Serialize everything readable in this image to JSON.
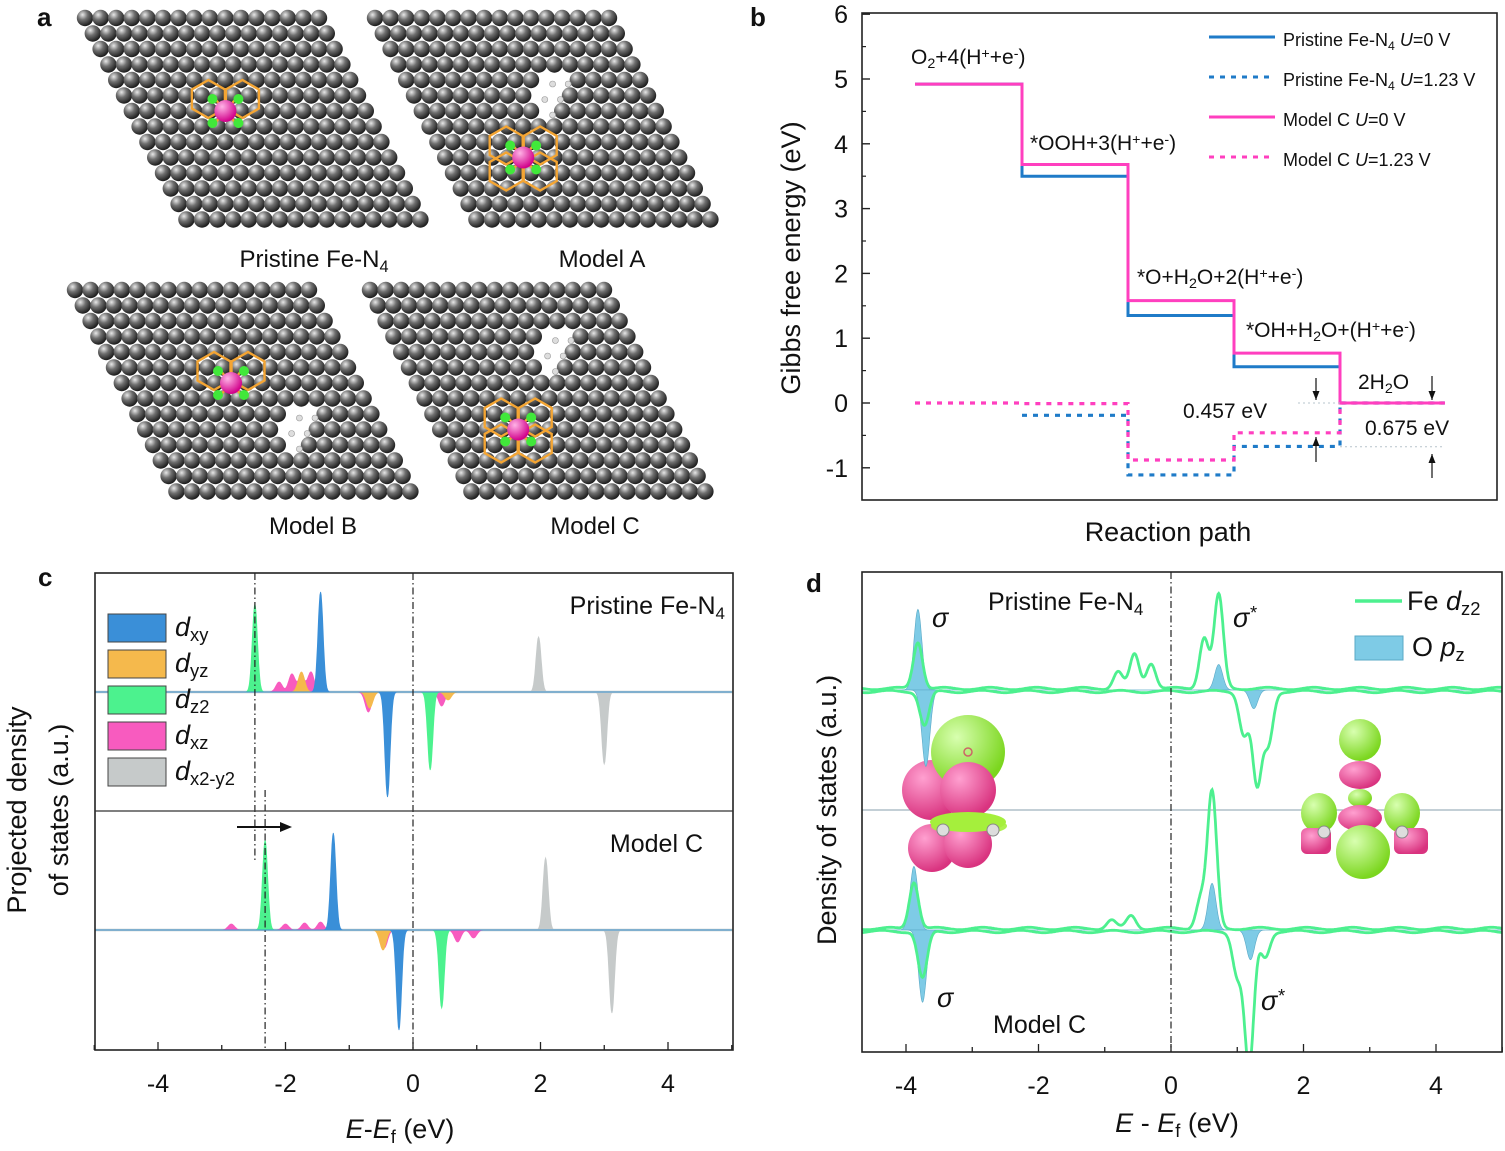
{
  "panel_labels": {
    "a": "a",
    "b": "b",
    "c": "c",
    "d": "d"
  },
  "panel_a": {
    "models": [
      {
        "label": [
          [
            "Pristine Fe-N",
            ""
          ],
          [
            "4",
            "sub"
          ]
        ]
      },
      {
        "label": [
          [
            "Model A",
            ""
          ]
        ]
      },
      {
        "label": [
          [
            "Model B",
            ""
          ]
        ]
      },
      {
        "label": [
          [
            "Model C",
            ""
          ]
        ]
      }
    ]
  },
  "chart_data": [
    {
      "panel": "b",
      "type": "line",
      "xlabel": "Reaction path",
      "ylabel": "Gibbs free energy (eV)",
      "ylim": [
        -1.5,
        6
      ],
      "yticks": [
        "-1",
        "0",
        "1",
        "2",
        "3",
        "4",
        "5",
        "6"
      ],
      "legend_position": "top-right",
      "categories": [
        [
          [
            "O",
            ""
          ],
          [
            "2",
            "sub"
          ],
          [
            "+4(H",
            ""
          ],
          [
            "+",
            "sup"
          ],
          [
            "+e",
            ""
          ],
          [
            "-",
            "sup"
          ],
          [
            ")",
            ""
          ]
        ],
        [
          [
            "*OOH+3(H",
            ""
          ],
          [
            "+",
            "sup"
          ],
          [
            "+e",
            ""
          ],
          [
            "-",
            "sup"
          ],
          [
            ")",
            ""
          ]
        ],
        [
          [
            "*O+H",
            ""
          ],
          [
            "2",
            "sub"
          ],
          [
            "O+2(H",
            ""
          ],
          [
            "+",
            "sup"
          ],
          [
            "+e",
            ""
          ],
          [
            "-",
            "sup"
          ],
          [
            ")",
            ""
          ]
        ],
        [
          [
            "*OH+H",
            ""
          ],
          [
            "2",
            "sub"
          ],
          [
            "O+(H",
            ""
          ],
          [
            "+",
            "sup"
          ],
          [
            "+e",
            ""
          ],
          [
            "-",
            "sup"
          ],
          [
            ")",
            ""
          ]
        ],
        [
          [
            "2H",
            ""
          ],
          [
            "2",
            "sub"
          ],
          [
            "O",
            ""
          ]
        ]
      ],
      "series": [
        {
          "name": [
            [
              "Pristine Fe-N",
              ""
            ],
            [
              "4",
              "sub"
            ],
            [
              " ",
              ""
            ],
            [
              "U",
              "i"
            ],
            [
              "=0 V",
              ""
            ]
          ],
          "style": "solid",
          "color": "#1f7bc8",
          "values": [
            4.92,
            3.5,
            1.35,
            0.56,
            0
          ]
        },
        {
          "name": [
            [
              "Pristine Fe-N",
              ""
            ],
            [
              "4",
              "sub"
            ],
            [
              " ",
              ""
            ],
            [
              "U",
              "i"
            ],
            [
              "=1.23 V",
              ""
            ]
          ],
          "style": "dotted",
          "color": "#1f7bc8",
          "values": [
            0,
            -0.19,
            -1.11,
            -0.67,
            0
          ]
        },
        {
          "name": [
            [
              "Model C ",
              ""
            ],
            [
              "U",
              "i"
            ],
            [
              "=0 V",
              ""
            ]
          ],
          "style": "solid",
          "color": "#ff3fbf",
          "values": [
            4.92,
            3.68,
            1.58,
            0.77,
            0
          ]
        },
        {
          "name": [
            [
              "Model C ",
              ""
            ],
            [
              "U",
              "i"
            ],
            [
              "=1.23 V",
              ""
            ]
          ],
          "style": "dotted",
          "color": "#ff3fbf",
          "values": [
            0,
            -0.01,
            -0.88,
            -0.46,
            0
          ]
        }
      ],
      "annotations": [
        {
          "text": "0.457 eV",
          "value": 0.457
        },
        {
          "text": "0.675 eV",
          "value": 0.675
        }
      ]
    },
    {
      "panel": "c",
      "type": "area",
      "xlabel": [
        [
          "E",
          "i"
        ],
        [
          "-",
          ""
        ],
        [
          "E",
          "i"
        ],
        [
          "f",
          "sub"
        ],
        [
          " (eV)",
          ""
        ]
      ],
      "ylabel": [
        "Projected density",
        "of states (a.u.)"
      ],
      "xlim": [
        -5,
        5
      ],
      "xticks": [
        "-4",
        "-2",
        "0",
        "2",
        "4"
      ],
      "legend_position": "top-left",
      "legend": [
        {
          "key": "dxy",
          "name": [
            [
              "d",
              "i"
            ],
            [
              "xy",
              "sub"
            ]
          ],
          "color": "#3a8fd8"
        },
        {
          "key": "dyz",
          "name": [
            [
              "d",
              "i"
            ],
            [
              "yz",
              "sub"
            ]
          ],
          "color": "#f5b94c"
        },
        {
          "key": "dz2",
          "name": [
            [
              "d",
              "i"
            ],
            [
              "z2",
              "sub"
            ]
          ],
          "color": "#4cf28e"
        },
        {
          "key": "dxz",
          "name": [
            [
              "d",
              "i"
            ],
            [
              "xz",
              "sub"
            ]
          ],
          "color": "#f85bbf"
        },
        {
          "key": "dx2y2",
          "name": [
            [
              "d",
              "i"
            ],
            [
              "x2-y2",
              "sub"
            ]
          ],
          "color": "#c6caca"
        }
      ],
      "subplots": [
        {
          "title": [
            [
              "Pristine Fe-N",
              ""
            ],
            [
              "4",
              "sub"
            ]
          ],
          "peaks": [
            {
              "orb": "dxz",
              "x": -2.1,
              "h": 0.1
            },
            {
              "orb": "dxz",
              "x": -1.9,
              "h": 0.18
            },
            {
              "orb": "dyz",
              "x": -1.75,
              "h": 0.2
            },
            {
              "orb": "dxz",
              "x": -1.6,
              "h": 0.2
            },
            {
              "orb": "dxz",
              "x": -1.75,
              "h": 0.15
            },
            {
              "orb": "dz2",
              "x": -2.48,
              "h": 0.88
            },
            {
              "orb": "dxy",
              "x": -1.45,
              "h": 1.0
            },
            {
              "orb": "dx2y2",
              "x": 1.97,
              "h": 0.55
            },
            {
              "orb": "dxz",
              "x": -0.7,
              "h": -0.2
            },
            {
              "orb": "dyz",
              "x": -0.68,
              "h": -0.16
            },
            {
              "orb": "dxy",
              "x": -0.4,
              "h": -1.05
            },
            {
              "orb": "dz2",
              "x": 0.27,
              "h": -0.78
            },
            {
              "orb": "dxz",
              "x": 0.45,
              "h": -0.14
            },
            {
              "orb": "dyz",
              "x": 0.55,
              "h": -0.08
            },
            {
              "orb": "dx2y2",
              "x": 3.0,
              "h": -0.72
            }
          ]
        },
        {
          "title": [
            [
              "Model C",
              ""
            ]
          ],
          "peaks": [
            {
              "orb": "dxz",
              "x": -2.85,
              "h": 0.06
            },
            {
              "orb": "dxz",
              "x": -2.0,
              "h": 0.06
            },
            {
              "orb": "dxz",
              "x": -1.7,
              "h": 0.07
            },
            {
              "orb": "dxz",
              "x": -1.45,
              "h": 0.08
            },
            {
              "orb": "dz2",
              "x": -2.32,
              "h": 0.9
            },
            {
              "orb": "dxy",
              "x": -1.25,
              "h": 0.97
            },
            {
              "orb": "dx2y2",
              "x": 2.08,
              "h": 0.72
            },
            {
              "orb": "dyz",
              "x": -0.47,
              "h": -0.2
            },
            {
              "orb": "dxz",
              "x": -0.45,
              "h": -0.18
            },
            {
              "orb": "dxy",
              "x": -0.22,
              "h": -1.0
            },
            {
              "orb": "dz2",
              "x": 0.45,
              "h": -0.78
            },
            {
              "orb": "dxz",
              "x": 0.7,
              "h": -0.12
            },
            {
              "orb": "dxz",
              "x": 0.95,
              "h": -0.08
            },
            {
              "orb": "dx2y2",
              "x": 3.12,
              "h": -0.83
            }
          ]
        }
      ],
      "reference_lines": [
        -2.48,
        0,
        -2.32
      ]
    },
    {
      "panel": "d",
      "type": "line",
      "xlabel": [
        [
          "E",
          "i"
        ],
        [
          " - ",
          ""
        ],
        [
          "E",
          "i"
        ],
        [
          "f",
          "sub"
        ],
        [
          " (eV)",
          ""
        ]
      ],
      "ylabel": "Density of states (a.u.)",
      "xlim": [
        -4.65,
        5
      ],
      "xticks": [
        "-4",
        "-2",
        "0",
        "2",
        "4"
      ],
      "legend_position": "top-right",
      "legend": [
        {
          "key": "Fe",
          "name": [
            [
              "Fe ",
              ""
            ],
            [
              "d",
              "i"
            ],
            [
              "z2",
              "sub"
            ]
          ],
          "color": "#4df08f",
          "style": "line"
        },
        {
          "key": "O",
          "name": [
            [
              "O ",
              ""
            ],
            [
              "p",
              "i"
            ],
            [
              "z",
              "sub"
            ]
          ],
          "color": "#7ecbe6",
          "style": "area"
        }
      ],
      "subplots": [
        {
          "title": [
            [
              "Pristine Fe-N",
              ""
            ],
            [
              "4",
              "sub"
            ]
          ],
          "bond_labels": [
            {
              "sym": "σ",
              "sup": ""
            },
            {
              "sym": "σ",
              "sup": "*"
            }
          ],
          "Fe": [
            {
              "x": -3.82,
              "h": 0.55
            },
            {
              "x": -3.72,
              "h": -0.4
            },
            {
              "x": -0.8,
              "h": 0.2
            },
            {
              "x": -0.55,
              "h": 0.4
            },
            {
              "x": -0.3,
              "h": 0.3
            },
            {
              "x": 0.5,
              "h": 0.6
            },
            {
              "x": 0.72,
              "h": 1.1
            },
            {
              "x": 1.1,
              "h": -0.5
            },
            {
              "x": 1.3,
              "h": -1.1
            },
            {
              "x": 1.47,
              "h": -0.6
            }
          ],
          "O": [
            {
              "x": -3.82,
              "h": 0.95
            },
            {
              "x": -3.7,
              "h": -0.9
            },
            {
              "x": 0.72,
              "h": 0.3
            },
            {
              "x": 1.25,
              "h": -0.22
            }
          ]
        },
        {
          "title": [
            [
              "Model C",
              ""
            ]
          ],
          "bond_labels": [
            {
              "sym": "σ",
              "sup": ""
            },
            {
              "sym": "σ",
              "sup": "*"
            }
          ],
          "Fe": [
            {
              "x": -3.88,
              "h": 0.55
            },
            {
              "x": -3.75,
              "h": -0.55
            },
            {
              "x": -0.9,
              "h": 0.1
            },
            {
              "x": -0.6,
              "h": 0.15
            },
            {
              "x": 0.45,
              "h": 0.35
            },
            {
              "x": 0.62,
              "h": 1.6
            },
            {
              "x": 1.0,
              "h": -0.5
            },
            {
              "x": 1.18,
              "h": -1.6
            },
            {
              "x": 1.42,
              "h": -0.3
            }
          ],
          "O": [
            {
              "x": -3.88,
              "h": 0.75
            },
            {
              "x": -3.75,
              "h": -0.85
            },
            {
              "x": 0.62,
              "h": 0.55
            },
            {
              "x": 1.2,
              "h": -0.35
            }
          ]
        }
      ]
    }
  ]
}
